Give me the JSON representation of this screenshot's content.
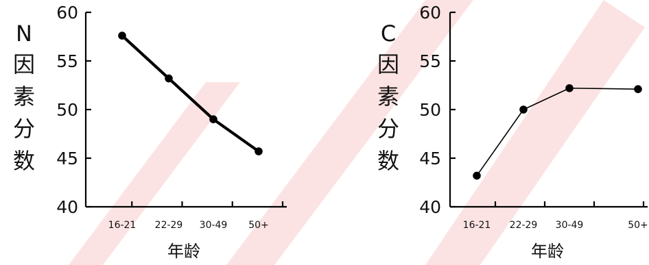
{
  "chart_data": [
    {
      "type": "line",
      "categories": [
        "16-21",
        "22-29",
        "30-49",
        "50+"
      ],
      "series": [
        {
          "values": [
            57.6,
            53.2,
            49.0,
            45.7
          ]
        }
      ],
      "ylabel": [
        "N",
        "因",
        "素",
        "分",
        "数"
      ],
      "xlabel": "年龄",
      "ylim": [
        40,
        60
      ],
      "yticks": [
        "40",
        "45",
        "50",
        "55",
        "60"
      ],
      "line_style": "thick",
      "grid": false
    },
    {
      "type": "line",
      "categories": [
        "16-21",
        "22-29",
        "30-49",
        "50+"
      ],
      "series": [
        {
          "values": [
            43.2,
            50.0,
            52.2,
            52.1
          ]
        }
      ],
      "ylabel": [
        "C",
        "因",
        "素",
        "分",
        "数"
      ],
      "xlabel": "年龄",
      "ylim": [
        40,
        60
      ],
      "yticks": [
        "40",
        "45",
        "50",
        "55",
        "60"
      ],
      "line_style": "thin",
      "grid": false
    }
  ],
  "colors": {
    "line": "#000000",
    "watermark": "#e8151b"
  }
}
